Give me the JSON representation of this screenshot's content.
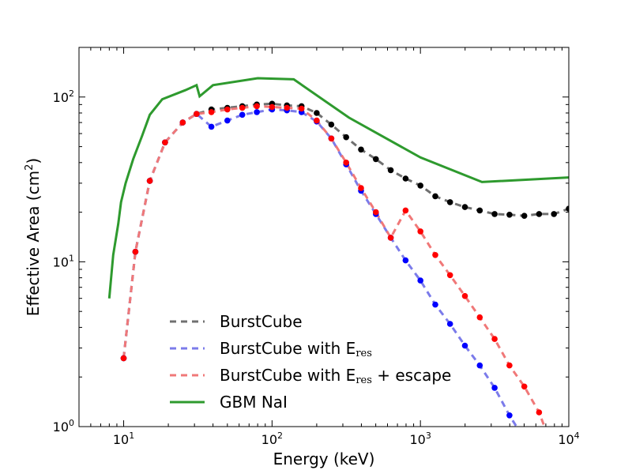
{
  "chart_data": {
    "type": "line",
    "xlabel": "Energy (keV)",
    "ylabel_prefix": "Effective Area (cm",
    "ylabel_sup": "2",
    "ylabel_suffix": ")",
    "xscale": "log",
    "yscale": "log",
    "xlim": [
      5,
      10000
    ],
    "ylim": [
      1,
      200
    ],
    "grid": false,
    "legend_placement": "lower-left",
    "x_ticks": [
      {
        "value": 10,
        "base": "10",
        "exp": "1"
      },
      {
        "value": 100,
        "base": "10",
        "exp": "2"
      },
      {
        "value": 1000,
        "base": "10",
        "exp": "3"
      },
      {
        "value": 10000,
        "base": "10",
        "exp": "4"
      }
    ],
    "y_ticks": [
      {
        "value": 1,
        "base": "10",
        "exp": "0"
      },
      {
        "value": 10,
        "base": "10",
        "exp": "1"
      },
      {
        "value": 100,
        "base": "10",
        "exp": "2"
      }
    ],
    "series": [
      {
        "name": "GBM NaI",
        "legend_main": "GBM NaI",
        "legend_sub": "",
        "legend_tail": "",
        "color": "#2e9a2e",
        "style": "solid",
        "markers": false,
        "x": [
          8,
          8.5,
          9.2,
          9.6,
          10.3,
          11.6,
          13.3,
          15.0,
          18.2,
          26,
          31,
          32.5,
          40,
          80,
          140,
          330,
          1000,
          2600,
          10000
        ],
        "y": [
          6,
          11,
          17,
          23,
          30,
          42,
          58,
          78,
          97,
          110,
          118,
          101,
          118,
          130,
          128,
          75,
          43,
          30.5,
          32.5
        ]
      },
      {
        "name": "BurstCube",
        "legend_main": "BurstCube",
        "legend_sub": "",
        "legend_tail": "",
        "color": "#707070",
        "marker_color": "#000000",
        "style": "dashed",
        "markers": true,
        "x": [
          10,
          12,
          15,
          19,
          25,
          31,
          39,
          50,
          63,
          79,
          100,
          126,
          158,
          200,
          251,
          316,
          398,
          501,
          631,
          794,
          1000,
          1259,
          1585,
          1995,
          2512,
          3162,
          3981,
          5012,
          6310,
          7943,
          10000
        ],
        "y": [
          2.6,
          11.5,
          31,
          53,
          70,
          79,
          84,
          86,
          88,
          90,
          91,
          89,
          88,
          80,
          68,
          57,
          48,
          42,
          36,
          32,
          29,
          25,
          23,
          21.5,
          20.5,
          19.5,
          19.3,
          19.0,
          19.5,
          19.5,
          21
        ],
        "points_x": [
          10,
          12,
          15,
          19,
          25,
          31,
          39,
          50,
          63,
          79,
          100,
          126,
          158,
          200,
          251,
          316,
          398,
          501,
          631,
          794,
          1000,
          1259,
          1585,
          1995,
          2512,
          3162,
          3981,
          5012,
          6310,
          7943,
          10000
        ],
        "points_y": [
          2.6,
          11.5,
          31,
          53,
          70,
          79,
          84,
          86,
          88,
          90,
          91,
          89,
          88,
          80,
          68,
          57,
          48,
          42,
          36,
          32,
          29,
          25,
          23,
          21.5,
          20.5,
          19.5,
          19.3,
          19.0,
          19.5,
          19.5,
          21
        ]
      },
      {
        "name": "BurstCube with E_res",
        "legend_main": "BurstCube with E",
        "legend_sub": "res",
        "legend_tail": "",
        "color": "#7b7bea",
        "marker_color": "#0000ff",
        "style": "dashed",
        "markers": true,
        "x": [
          10,
          12,
          15,
          19,
          25,
          31,
          39,
          50,
          63,
          79,
          100,
          126,
          158,
          200,
          251,
          316,
          398,
          501,
          631,
          794,
          1000,
          1259,
          1585,
          1995,
          2512,
          3162,
          3981,
          4600
        ],
        "y": [
          2.6,
          11.5,
          31,
          53,
          70,
          79,
          66,
          72,
          78,
          81,
          84,
          83,
          81,
          71,
          56,
          39,
          27,
          19.5,
          14,
          10.2,
          7.7,
          5.5,
          4.2,
          3.1,
          2.35,
          1.72,
          1.17,
          0.95
        ],
        "points_x": [
          10,
          12,
          15,
          19,
          25,
          31,
          39,
          50,
          63,
          79,
          100,
          126,
          158,
          200,
          251,
          316,
          398,
          501,
          631,
          794,
          1000,
          1259,
          1585,
          1995,
          2512,
          3162,
          3981
        ],
        "points_y": [
          2.6,
          11.5,
          31,
          53,
          70,
          79,
          66,
          72,
          78,
          81,
          84,
          83,
          81,
          71,
          56,
          39,
          27,
          19.5,
          14,
          10.2,
          7.7,
          5.5,
          4.2,
          3.1,
          2.35,
          1.72,
          1.17
        ]
      },
      {
        "name": "BurstCube with E_res + escape",
        "legend_main": "BurstCube with E",
        "legend_sub": "res",
        "legend_tail": " + escape",
        "color": "#f07878",
        "marker_color": "#ff0000",
        "style": "dashed",
        "markers": true,
        "x": [
          10,
          12,
          15,
          19,
          25,
          31,
          39,
          50,
          63,
          79,
          100,
          126,
          158,
          200,
          251,
          316,
          398,
          501,
          631,
          794,
          1000,
          1259,
          1585,
          1995,
          2512,
          3162,
          3981,
          5012,
          6310,
          7000
        ],
        "y": [
          2.6,
          11.5,
          31,
          53,
          70,
          79,
          81,
          84,
          86,
          88,
          87,
          86,
          85,
          72,
          56,
          40,
          28,
          20,
          14,
          20.5,
          15.3,
          11,
          8.3,
          6.2,
          4.6,
          3.4,
          2.35,
          1.75,
          1.22,
          0.95
        ],
        "points_x": [
          10,
          12,
          15,
          19,
          25,
          31,
          39,
          50,
          63,
          79,
          100,
          126,
          158,
          200,
          251,
          316,
          398,
          501,
          631,
          794,
          1000,
          1259,
          1585,
          1995,
          2512,
          3162,
          3981,
          5012,
          6310
        ],
        "points_y": [
          2.6,
          11.5,
          31,
          53,
          70,
          79,
          81,
          84,
          86,
          88,
          87,
          86,
          85,
          72,
          56,
          40,
          28,
          20,
          14,
          20.5,
          15.3,
          11,
          8.3,
          6.2,
          4.6,
          3.4,
          2.35,
          1.75,
          1.22
        ]
      }
    ],
    "legend_order": [
      "BurstCube",
      "BurstCube with E_res",
      "BurstCube with E_res + escape",
      "GBM NaI"
    ]
  }
}
